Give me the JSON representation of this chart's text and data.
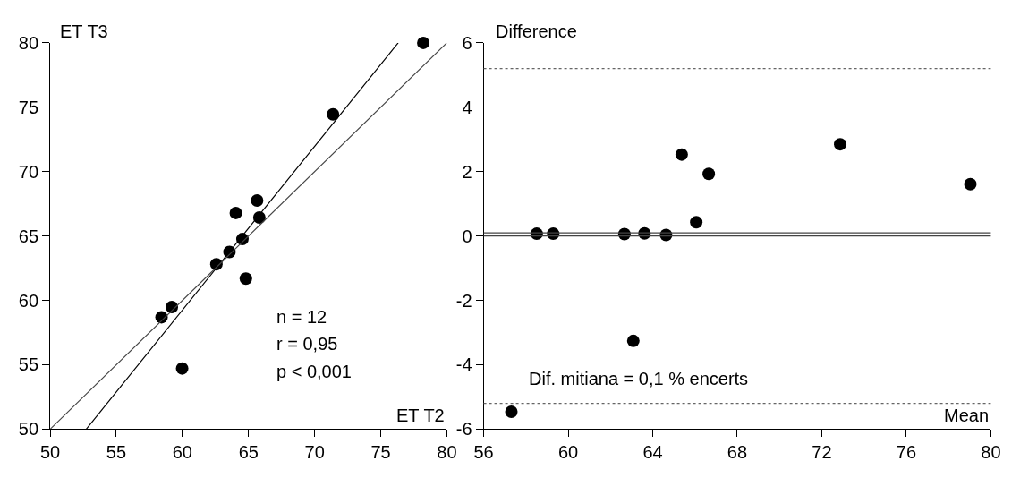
{
  "chart_data": [
    {
      "type": "scatter",
      "xlabel": "ET T2",
      "ylabel": "ET T3",
      "xlim": [
        50,
        80
      ],
      "ylim": [
        50,
        80
      ],
      "xticks": [
        50,
        55,
        60,
        65,
        70,
        75,
        80
      ],
      "yticks": [
        50,
        55,
        60,
        65,
        70,
        75,
        80
      ],
      "x": [
        58.42,
        59.2,
        59.98,
        62.57,
        63.56,
        64.04,
        64.54,
        64.8,
        65.65,
        65.82,
        71.39,
        78.22
      ],
      "series": [
        {
          "color": "#000000",
          "marker": "circle",
          "values": [
            58.69,
            59.48,
            54.71,
            62.81,
            63.76,
            66.79,
            64.76,
            61.69,
            67.76,
            66.43,
            74.45,
            80.0
          ]
        },
        {
          "type": "line",
          "color": "#000000",
          "x": [
            52.73,
            76.32
          ],
          "values": [
            50,
            80
          ]
        },
        {
          "type": "line",
          "color": "#444444",
          "x": [
            50,
            80
          ],
          "values": [
            50,
            80
          ]
        }
      ],
      "annotations": [
        "n = 12",
        "r = 0,95",
        "p < 0,001"
      ]
    },
    {
      "type": "scatter",
      "xlabel": "Mean",
      "ylabel": "Difference",
      "xlim": [
        56,
        80
      ],
      "ylim": [
        -6,
        6
      ],
      "xticks": [
        56,
        60,
        64,
        68,
        72,
        76,
        80
      ],
      "yticks": [
        -6,
        -4,
        -2,
        0,
        2,
        4,
        6
      ],
      "x": [
        57.31,
        58.51,
        59.29,
        62.66,
        63.08,
        63.61,
        64.63,
        65.37,
        66.06,
        66.65,
        72.87,
        79.03
      ],
      "series": [
        {
          "color": "#000000",
          "marker": "circle",
          "values": [
            -5.46,
            0.07,
            0.07,
            0.06,
            -3.26,
            0.08,
            0.03,
            2.53,
            0.43,
            1.93,
            2.85,
            1.61
          ]
        }
      ],
      "ref_lines": [
        {
          "axis": "y",
          "value": 5.2,
          "color": "#666666",
          "line_style": "dotted"
        },
        {
          "axis": "y",
          "value": 0.1,
          "color": "#444444",
          "line_style": "solid"
        },
        {
          "axis": "y",
          "value": 0,
          "color": "#444444",
          "line_style": "solid"
        },
        {
          "axis": "y",
          "value": -5.2,
          "color": "#666666",
          "line_style": "dotted"
        }
      ],
      "annotations": [
        "Dif. mitiana = 0,1 % encerts"
      ]
    }
  ]
}
